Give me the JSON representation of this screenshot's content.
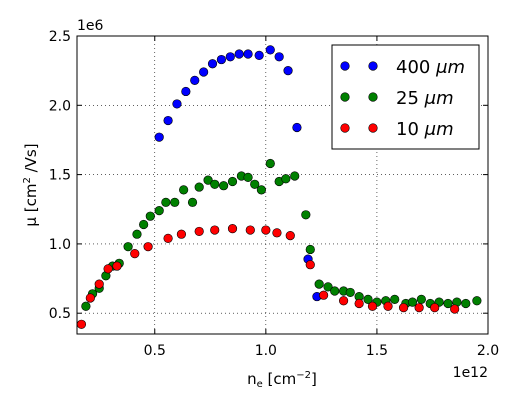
{
  "chart_data": {
    "type": "scatter",
    "xlabel_base": "n",
    "xlabel_sub": "e",
    "xlabel_unit": " [cm",
    "xlabel_sup": "−2",
    "xlabel_end": "]",
    "ylabel_main": "μ [cm",
    "ylabel_sup": "2",
    "ylabel_end": " /Vs]",
    "x_offset_text": "1e12",
    "y_offset_text": "1e6",
    "xlim": [
      0.15,
      2.0
    ],
    "ylim": [
      0.35,
      2.5
    ],
    "x_scale": 1000000000000.0,
    "y_scale": 1000000.0,
    "xticks": [
      0.5,
      1.0,
      1.5,
      2.0
    ],
    "xtick_labels": [
      "0.5",
      "1.0",
      "1.5",
      "2.0"
    ],
    "yticks": [
      0.5,
      1.0,
      1.5,
      2.0,
      2.5
    ],
    "ytick_labels": [
      "0.5",
      "1.0",
      "1.5",
      "2.0",
      "2.5"
    ],
    "grid": true,
    "legend_position": "top-right",
    "series": [
      {
        "name": "400",
        "unit": "μm",
        "color": "#0000ff",
        "x": [
          0.52,
          0.56,
          0.6,
          0.64,
          0.68,
          0.72,
          0.76,
          0.8,
          0.84,
          0.88,
          0.92,
          0.97,
          1.02,
          1.06,
          1.1,
          1.14,
          1.19,
          1.23
        ],
        "y": [
          1.77,
          1.89,
          2.01,
          2.1,
          2.18,
          2.24,
          2.3,
          2.33,
          2.35,
          2.37,
          2.37,
          2.36,
          2.4,
          2.35,
          2.25,
          1.84,
          0.89,
          0.62
        ]
      },
      {
        "name": "25",
        "unit": "μm",
        "color": "#008000",
        "x": [
          0.19,
          0.22,
          0.25,
          0.28,
          0.31,
          0.34,
          0.38,
          0.42,
          0.45,
          0.48,
          0.52,
          0.55,
          0.59,
          0.63,
          0.67,
          0.7,
          0.74,
          0.77,
          0.81,
          0.85,
          0.89,
          0.92,
          0.95,
          0.98,
          1.02,
          1.06,
          1.09,
          1.13,
          1.18,
          1.2,
          1.24,
          1.28,
          1.31,
          1.35,
          1.38,
          1.42,
          1.46,
          1.5,
          1.54,
          1.58,
          1.63,
          1.66,
          1.7,
          1.74,
          1.78,
          1.82,
          1.86,
          1.9,
          1.95
        ],
        "y": [
          0.55,
          0.64,
          0.68,
          0.77,
          0.84,
          0.86,
          0.98,
          1.07,
          1.14,
          1.2,
          1.24,
          1.3,
          1.3,
          1.39,
          1.3,
          1.41,
          1.46,
          1.43,
          1.42,
          1.45,
          1.49,
          1.48,
          1.43,
          1.39,
          1.58,
          1.45,
          1.47,
          1.49,
          1.21,
          0.96,
          0.71,
          0.69,
          0.66,
          0.66,
          0.65,
          0.62,
          0.6,
          0.58,
          0.59,
          0.6,
          0.57,
          0.58,
          0.6,
          0.57,
          0.58,
          0.57,
          0.58,
          0.57,
          0.59
        ]
      },
      {
        "name": "10",
        "unit": "μm",
        "color": "#ff0000",
        "x": [
          0.17,
          0.21,
          0.25,
          0.29,
          0.33,
          0.41,
          0.47,
          0.56,
          0.62,
          0.7,
          0.77,
          0.85,
          0.93,
          1.0,
          1.05,
          1.11,
          1.2,
          1.26,
          1.35,
          1.42,
          1.48,
          1.55,
          1.62,
          1.69,
          1.76,
          1.85
        ],
        "y": [
          0.42,
          0.61,
          0.71,
          0.82,
          0.84,
          0.93,
          0.98,
          1.04,
          1.07,
          1.09,
          1.1,
          1.11,
          1.1,
          1.1,
          1.08,
          1.06,
          0.85,
          0.63,
          0.59,
          0.57,
          0.55,
          0.55,
          0.54,
          0.54,
          0.54,
          0.53
        ]
      }
    ]
  }
}
